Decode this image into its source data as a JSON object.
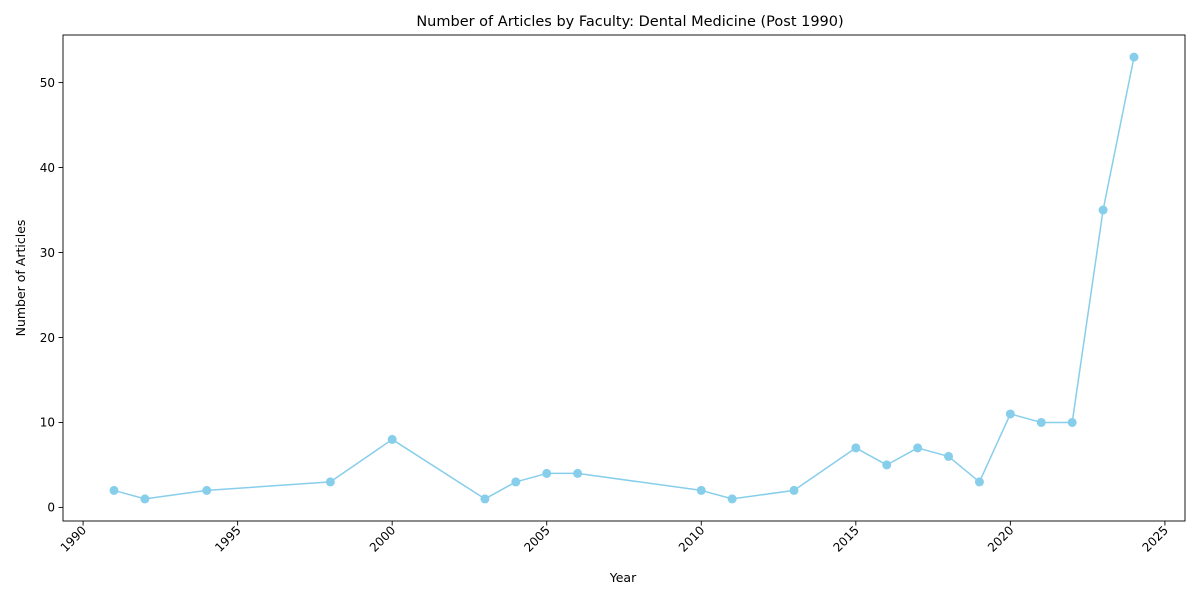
{
  "chart_data": {
    "type": "line",
    "title": "Number of Articles by Faculty: Dental Medicine (Post 1990)",
    "xlabel": "Year",
    "ylabel": "Number of Articles",
    "xlim": [
      1989.35,
      2025.65
    ],
    "ylim": [
      -1.6,
      55.6
    ],
    "x_ticks": [
      1990,
      1995,
      2000,
      2005,
      2010,
      2015,
      2020,
      2025
    ],
    "y_ticks": [
      0,
      10,
      20,
      30,
      40,
      50
    ],
    "grid": false,
    "legend": "none",
    "x_tick_rotation": 45,
    "series": [
      {
        "color": "#87ceeb",
        "marker": "circle",
        "x": [
          1991,
          1992,
          1994,
          1998,
          2000,
          2003,
          2004,
          2005,
          2006,
          2010,
          2011,
          2013,
          2015,
          2016,
          2017,
          2018,
          2019,
          2020,
          2021,
          2022,
          2023,
          2024
        ],
        "y": [
          2,
          1,
          2,
          3,
          8,
          1,
          3,
          4,
          4,
          2,
          1,
          2,
          7,
          5,
          7,
          6,
          3,
          11,
          10,
          10,
          35,
          53
        ]
      }
    ]
  }
}
